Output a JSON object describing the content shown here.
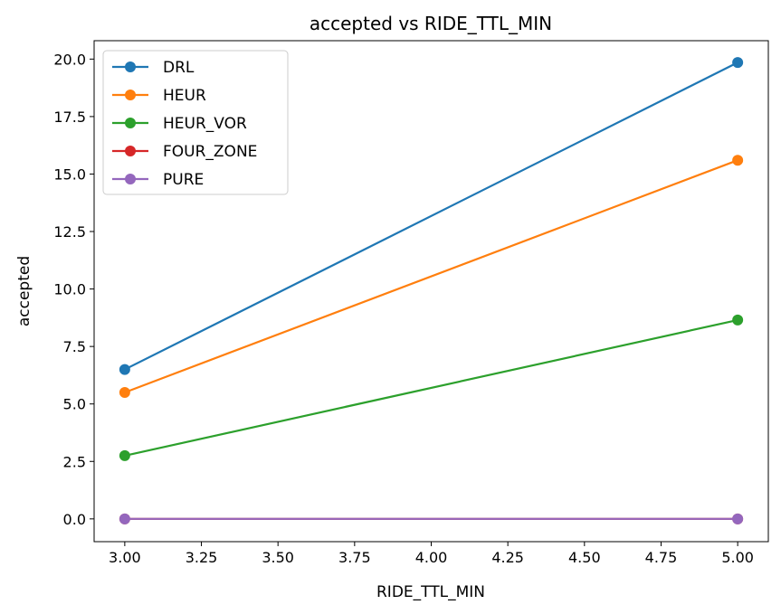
{
  "chart_data": {
    "type": "line",
    "title": "accepted vs RIDE_TTL_MIN",
    "xlabel": "RIDE_TTL_MIN",
    "ylabel": "accepted",
    "x": [
      3.0,
      5.0
    ],
    "xlim": [
      2.9,
      5.1
    ],
    "ylim": [
      -0.99,
      20.8
    ],
    "xticks": [
      "3.00",
      "3.25",
      "3.50",
      "3.75",
      "4.00",
      "4.25",
      "4.50",
      "4.75",
      "5.00"
    ],
    "yticks": [
      "0.0",
      "2.5",
      "5.0",
      "7.5",
      "10.0",
      "12.5",
      "15.0",
      "17.5",
      "20.0"
    ],
    "grid": false,
    "legend_position": "top-left",
    "series": [
      {
        "name": "DRL",
        "values": [
          6.5,
          19.85
        ],
        "color": "#1f77b4"
      },
      {
        "name": "HEUR",
        "values": [
          5.5,
          15.6
        ],
        "color": "#ff7f0e"
      },
      {
        "name": "HEUR_VOR",
        "values": [
          2.75,
          8.65
        ],
        "color": "#2ca02c"
      },
      {
        "name": "FOUR_ZONE",
        "values": [
          0.0,
          0.0
        ],
        "color": "#d62728"
      },
      {
        "name": "PURE",
        "values": [
          0.0,
          0.0
        ],
        "color": "#9467bd"
      }
    ]
  }
}
